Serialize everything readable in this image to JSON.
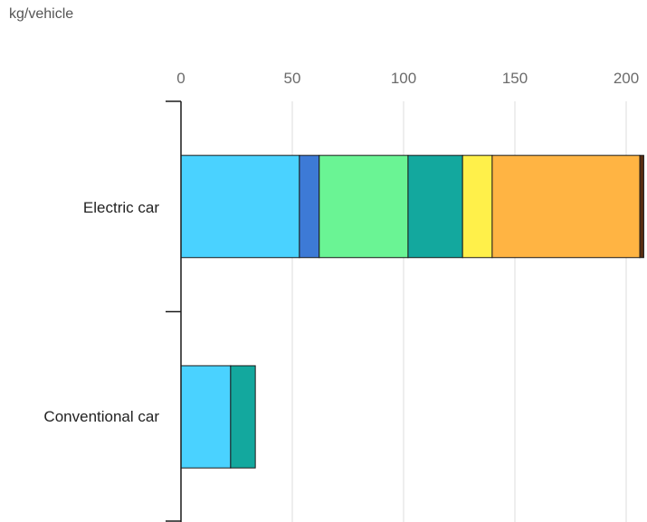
{
  "chart_data": {
    "type": "bar",
    "orientation": "horizontal",
    "stacked": true,
    "unit_label": "kg/vehicle",
    "title": "",
    "xlabel": "",
    "ylabel": "",
    "categories": [
      "Electric car",
      "Conventional car"
    ],
    "xlim": [
      0,
      207
    ],
    "xticks": [
      0,
      50,
      100,
      150,
      200
    ],
    "grid": true,
    "legend": "none",
    "series": [
      {
        "values": [
          53.2,
          22.3
        ],
        "color": "#4AD2FF"
      },
      {
        "values": [
          8.9,
          0
        ],
        "color": "#3D7AD6"
      },
      {
        "values": [
          39.9,
          0
        ],
        "color": "#6AF494"
      },
      {
        "values": [
          24.5,
          11.1
        ],
        "color": "#13A89E"
      },
      {
        "values": [
          13.3,
          0
        ],
        "color": "#FFF04A"
      },
      {
        "values": [
          66.3,
          0
        ],
        "color": "#FFB443"
      },
      {
        "values": [
          1.8,
          0
        ],
        "color": "#5A2E12"
      }
    ]
  }
}
